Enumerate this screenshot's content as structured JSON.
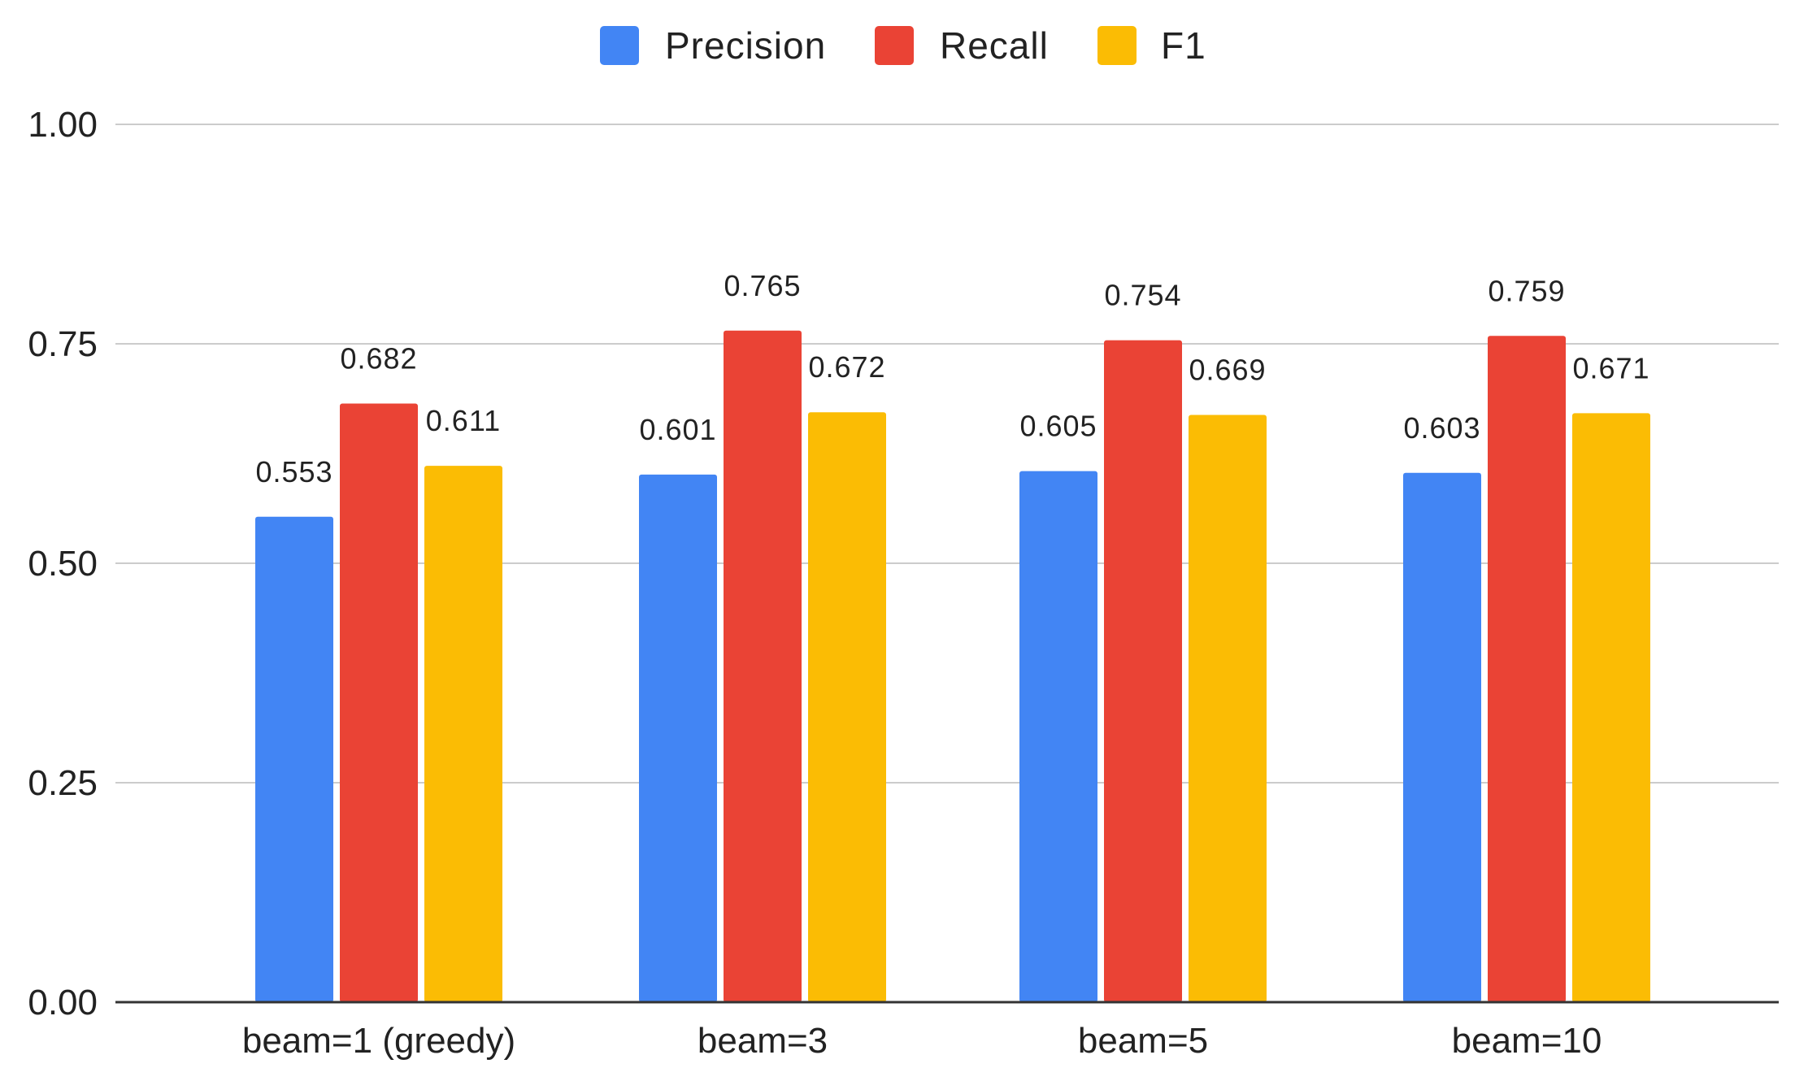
{
  "chart_data": {
    "type": "bar",
    "title": "",
    "xlabel": "",
    "ylabel": "",
    "categories": [
      "beam=1 (greedy)",
      "beam=3",
      "beam=5",
      "beam=10"
    ],
    "series": [
      {
        "name": "Precision",
        "color": "#4285f4",
        "values": [
          0.553,
          0.601,
          0.605,
          0.603
        ],
        "labels": [
          "0.553",
          "0.601",
          "0.605",
          "0.603"
        ]
      },
      {
        "name": "Recall",
        "color": "#ea4335",
        "values": [
          0.682,
          0.765,
          0.754,
          0.759
        ],
        "labels": [
          "0.682",
          "0.765",
          "0.754",
          "0.759"
        ]
      },
      {
        "name": "F1",
        "color": "#fbbc04",
        "values": [
          0.611,
          0.672,
          0.669,
          0.671
        ],
        "labels": [
          "0.611",
          "0.672",
          "0.669",
          "0.671"
        ]
      }
    ],
    "ylim": [
      0,
      1
    ],
    "yticks": [
      0,
      0.25,
      0.5,
      0.75,
      1.0
    ],
    "ytick_labels": [
      "0.00",
      "0.25",
      "0.50",
      "0.75",
      "1.00"
    ],
    "grid": true,
    "legend_position": "top-center"
  }
}
